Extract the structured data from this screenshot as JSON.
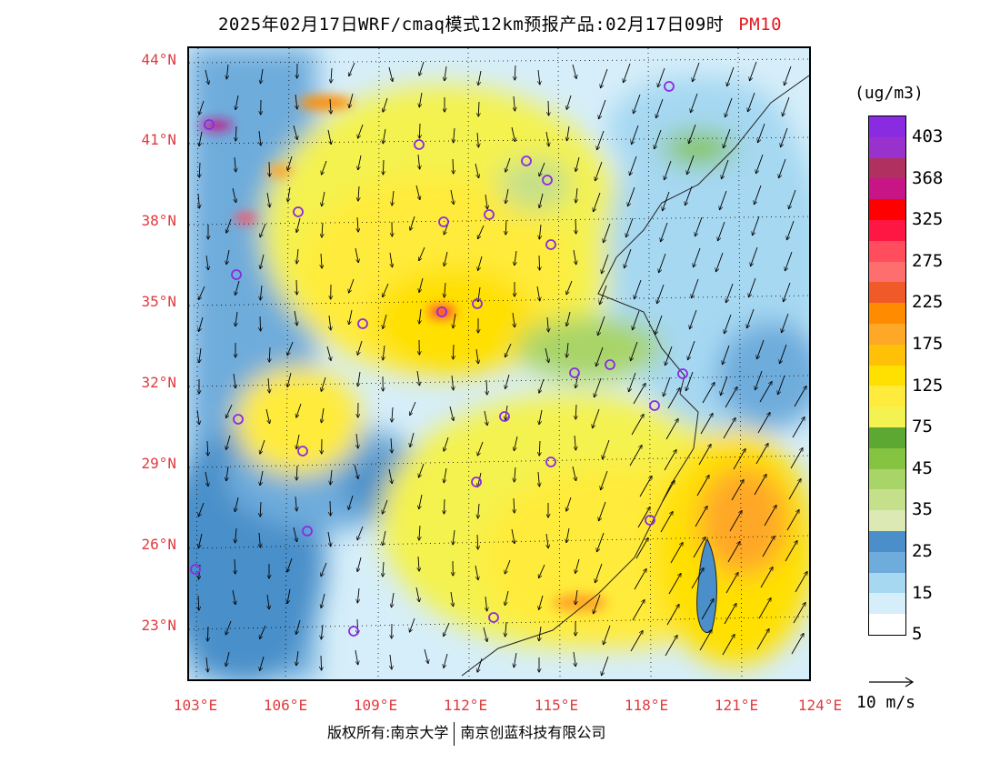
{
  "title": {
    "main": "2025年02月17日WRF/cmaq模式12km预报产品:02月17日09时",
    "pollutant": "PM10"
  },
  "axes": {
    "lat_labels": [
      "44°N",
      "41°N",
      "38°N",
      "35°N",
      "32°N",
      "29°N",
      "26°N",
      "23°N"
    ],
    "lon_labels": [
      "103°E",
      "106°E",
      "109°E",
      "112°E",
      "115°E",
      "118°E",
      "121°E",
      "124°E"
    ]
  },
  "legend": {
    "unit": "(ug/m3)",
    "levels": [
      {
        "label": "403",
        "color": "#8a2be2"
      },
      {
        "label": "",
        "color": "#9932cc"
      },
      {
        "label": "368",
        "color": "#b03060"
      },
      {
        "label": "",
        "color": "#c71585"
      },
      {
        "label": "325",
        "color": "#ff0000"
      },
      {
        "label": "",
        "color": "#ff1744"
      },
      {
        "label": "275",
        "color": "#ff4d5e"
      },
      {
        "label": "",
        "color": "#ff6e6e"
      },
      {
        "label": "225",
        "color": "#f05a28"
      },
      {
        "label": "",
        "color": "#ff8c00"
      },
      {
        "label": "175",
        "color": "#ffa726"
      },
      {
        "label": "",
        "color": "#ffc107"
      },
      {
        "label": "125",
        "color": "#ffe000"
      },
      {
        "label": "",
        "color": "#ffeb3b"
      },
      {
        "label": "75",
        "color": "#f4f250"
      },
      {
        "label": "",
        "color": "#5da832"
      },
      {
        "label": "45",
        "color": "#84c441"
      },
      {
        "label": "",
        "color": "#a8d468"
      },
      {
        "label": "35",
        "color": "#c5e08a"
      },
      {
        "label": "",
        "color": "#dde9b4"
      },
      {
        "label": "25",
        "color": "#4a8fc9"
      },
      {
        "label": "",
        "color": "#6eacdc"
      },
      {
        "label": "15",
        "color": "#a6d8f2"
      },
      {
        "label": "",
        "color": "#d6eef9"
      },
      {
        "label": "5",
        "color": "#ffffff"
      }
    ]
  },
  "wind_reference": {
    "label": "10 m/s"
  },
  "copyright": {
    "owner_prefix": "版权所有:南京大学",
    "owner_company": "南京创蓝科技有限公司"
  }
}
